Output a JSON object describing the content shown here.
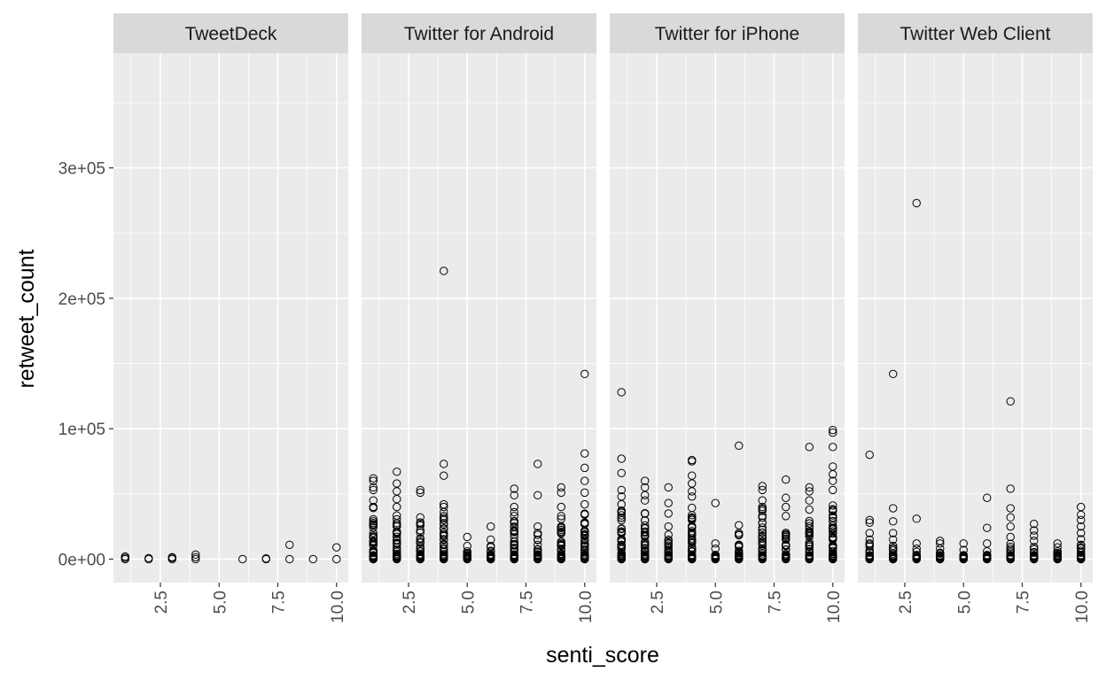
{
  "chart_data": {
    "type": "scatter",
    "xlabel": "senti_score",
    "ylabel": "retweet_count",
    "xlim": [
      0.5,
      10.5
    ],
    "ylim": [
      -18000,
      388000
    ],
    "x_ticks": [
      2.5,
      5.0,
      7.5,
      10.0
    ],
    "x_tick_labels": [
      "2.5",
      "5.0",
      "7.5",
      "10.0"
    ],
    "y_ticks": [
      0,
      100000,
      200000,
      300000
    ],
    "y_tick_labels": [
      "0e+00",
      "1e+05",
      "2e+05",
      "3e+05"
    ],
    "grid": true,
    "facets": [
      {
        "name": "TweetDeck",
        "points": [
          [
            1,
            0
          ],
          [
            1,
            1000
          ],
          [
            1,
            2000
          ],
          [
            2,
            0
          ],
          [
            2,
            800
          ],
          [
            3,
            0
          ],
          [
            3,
            1000
          ],
          [
            3,
            1500
          ],
          [
            4,
            0
          ],
          [
            4,
            1500
          ],
          [
            4,
            3500
          ],
          [
            6,
            0
          ],
          [
            7,
            0
          ],
          [
            7,
            500
          ],
          [
            8,
            0
          ],
          [
            8,
            11000
          ],
          [
            9,
            0
          ],
          [
            10,
            0
          ],
          [
            10,
            9000
          ]
        ]
      },
      {
        "name": "Twitter for Android",
        "points": [
          [
            1,
            62000
          ],
          [
            1,
            60000
          ],
          [
            1,
            55000
          ],
          [
            1,
            53000
          ],
          [
            1,
            45000
          ],
          [
            1,
            40000
          ],
          [
            2,
            67000
          ],
          [
            2,
            58000
          ],
          [
            2,
            52000
          ],
          [
            2,
            46000
          ],
          [
            2,
            40000
          ],
          [
            3,
            53000
          ],
          [
            3,
            51000
          ],
          [
            3,
            32000
          ],
          [
            3,
            28000
          ],
          [
            4,
            221000
          ],
          [
            4,
            73000
          ],
          [
            4,
            64000
          ],
          [
            4,
            42000
          ],
          [
            4,
            40000
          ],
          [
            4,
            36000
          ],
          [
            4,
            30000
          ],
          [
            5,
            17000
          ],
          [
            5,
            10000
          ],
          [
            5,
            6000
          ],
          [
            6,
            25000
          ],
          [
            6,
            15000
          ],
          [
            6,
            10000
          ],
          [
            7,
            54000
          ],
          [
            7,
            49000
          ],
          [
            7,
            40000
          ],
          [
            7,
            36000
          ],
          [
            8,
            73000
          ],
          [
            8,
            49000
          ],
          [
            8,
            25000
          ],
          [
            8,
            20000
          ],
          [
            9,
            55000
          ],
          [
            9,
            51000
          ],
          [
            9,
            40000
          ],
          [
            9,
            33000
          ],
          [
            9,
            25000
          ],
          [
            10,
            142000
          ],
          [
            10,
            81000
          ],
          [
            10,
            70000
          ],
          [
            10,
            60000
          ],
          [
            10,
            51000
          ],
          [
            10,
            42000
          ]
        ]
      },
      {
        "name": "Twitter for iPhone",
        "points": [
          [
            1,
            128000
          ],
          [
            1,
            77000
          ],
          [
            1,
            66000
          ],
          [
            1,
            53000
          ],
          [
            1,
            48000
          ],
          [
            1,
            42000
          ],
          [
            2,
            60000
          ],
          [
            2,
            55000
          ],
          [
            2,
            49000
          ],
          [
            2,
            45000
          ],
          [
            3,
            55000
          ],
          [
            3,
            43000
          ],
          [
            3,
            35000
          ],
          [
            3,
            25000
          ],
          [
            4,
            76000
          ],
          [
            4,
            75000
          ],
          [
            4,
            64000
          ],
          [
            4,
            58000
          ],
          [
            4,
            52000
          ],
          [
            4,
            48000
          ],
          [
            5,
            43000
          ],
          [
            5,
            12000
          ],
          [
            5,
            8000
          ],
          [
            5,
            2000
          ],
          [
            6,
            87000
          ],
          [
            6,
            26000
          ],
          [
            6,
            20000
          ],
          [
            7,
            56000
          ],
          [
            7,
            53000
          ],
          [
            7,
            45000
          ],
          [
            7,
            40000
          ],
          [
            8,
            61000
          ],
          [
            8,
            47000
          ],
          [
            8,
            40000
          ],
          [
            8,
            33000
          ],
          [
            9,
            86000
          ],
          [
            9,
            55000
          ],
          [
            9,
            52000
          ],
          [
            9,
            45000
          ],
          [
            9,
            38000
          ],
          [
            10,
            99000
          ],
          [
            10,
            97000
          ],
          [
            10,
            86000
          ],
          [
            10,
            71000
          ],
          [
            10,
            65000
          ],
          [
            10,
            60000
          ],
          [
            10,
            53000
          ]
        ]
      },
      {
        "name": "Twitter Web Client",
        "points": [
          [
            1,
            80000
          ],
          [
            1,
            30000
          ],
          [
            1,
            28000
          ],
          [
            1,
            20000
          ],
          [
            1,
            15000
          ],
          [
            2,
            142000
          ],
          [
            2,
            39000
          ],
          [
            2,
            29000
          ],
          [
            2,
            20000
          ],
          [
            2,
            15000
          ],
          [
            3,
            273000
          ],
          [
            3,
            31000
          ],
          [
            3,
            12000
          ],
          [
            3,
            8000
          ],
          [
            4,
            14000
          ],
          [
            4,
            12000
          ],
          [
            4,
            8000
          ],
          [
            5,
            12000
          ],
          [
            5,
            7000
          ],
          [
            5,
            3000
          ],
          [
            6,
            47000
          ],
          [
            6,
            24000
          ],
          [
            6,
            12000
          ],
          [
            6,
            6000
          ],
          [
            7,
            121000
          ],
          [
            7,
            54000
          ],
          [
            7,
            39000
          ],
          [
            7,
            32000
          ],
          [
            7,
            25000
          ],
          [
            7,
            17000
          ],
          [
            8,
            27000
          ],
          [
            8,
            22000
          ],
          [
            8,
            18000
          ],
          [
            8,
            14000
          ],
          [
            9,
            12000
          ],
          [
            9,
            9000
          ],
          [
            9,
            6000
          ],
          [
            10,
            40000
          ],
          [
            10,
            34000
          ],
          [
            10,
            30000
          ],
          [
            10,
            25000
          ],
          [
            10,
            20000
          ]
        ],
        "dense": [
          0,
          0,
          0,
          0,
          0,
          0,
          0,
          0,
          0,
          0
        ]
      }
    ],
    "dense_bands": {
      "TweetDeck": [
        0,
        0,
        0,
        0,
        0,
        0,
        0,
        0,
        0,
        0
      ],
      "Twitter for Android": [
        42000,
        38000,
        32000,
        38000,
        6000,
        10000,
        38000,
        20000,
        35000,
        42000
      ],
      "Twitter for iPhone": [
        42000,
        40000,
        22000,
        42000,
        4000,
        22000,
        42000,
        30000,
        38000,
        48000
      ],
      "Twitter Web Client": [
        14000,
        12000,
        6000,
        8000,
        3000,
        4000,
        14000,
        10000,
        6000,
        18000
      ]
    }
  }
}
